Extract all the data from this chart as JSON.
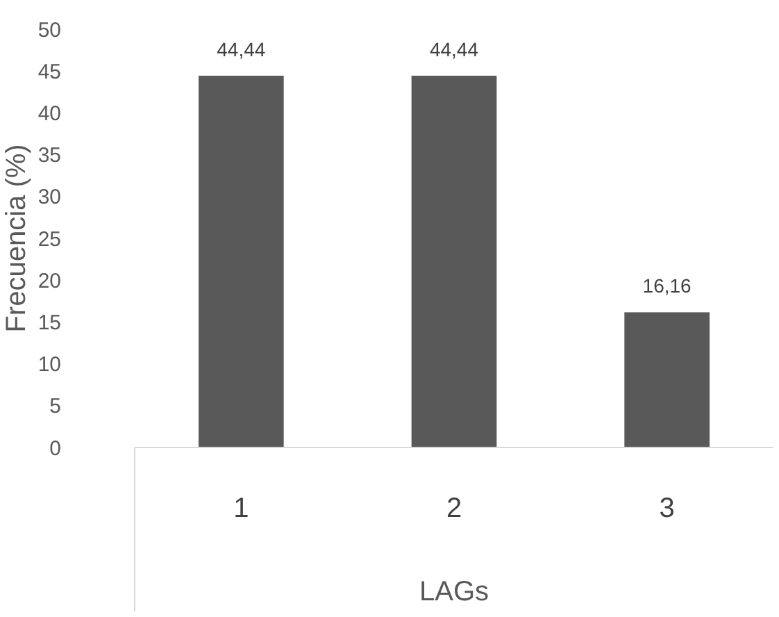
{
  "chart_data": {
    "type": "bar",
    "xlabel": "LAGs",
    "ylabel": "Frecuencia (%)",
    "categories": [
      "1",
      "2",
      "3"
    ],
    "values": [
      44.44,
      44.44,
      16.16
    ],
    "value_labels": [
      "44,44",
      "44,44",
      "16,16"
    ],
    "color": "#595959",
    "ylim": [
      0,
      50
    ],
    "yticks": [
      0,
      5,
      10,
      15,
      20,
      25,
      30,
      35,
      40,
      45,
      50
    ],
    "grid": false
  }
}
